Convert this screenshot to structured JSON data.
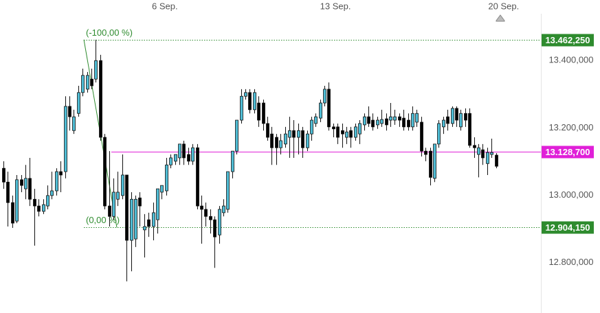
{
  "chart_data": {
    "type": "candlestick",
    "xlim": [
      -0.78,
      121.9
    ],
    "xticks": [
      {
        "value": 36.7,
        "label": "6 Sep."
      },
      {
        "value": 75.5,
        "label": "13 Sep."
      },
      {
        "value": 113.75,
        "label": "20 Sep."
      }
    ],
    "ylim": [
      12650,
      13580
    ],
    "yticks": [
      {
        "value": 12800,
        "label": "12.800,000"
      },
      {
        "value": 13000,
        "label": "13.000,000"
      },
      {
        "value": 13200,
        "label": "13.200,000"
      },
      {
        "value": 13400,
        "label": "13.400,000"
      }
    ],
    "grid": false,
    "up_color": "#4fbcd4",
    "down_color": "#000000",
    "open": [
      13080,
      13039,
      12978,
      12923,
      13046,
      13019,
      13050,
      12988,
      12968,
      12952,
      12968,
      12999,
      13013,
      13070,
      13070,
      13264,
      13192,
      13243,
      13305,
      13315,
      13345,
      13345,
      13400,
      13172,
      12968,
      12937,
      12988,
      12999,
      13060,
      12866,
      12870,
      12992,
      12897,
      12927,
      12907,
      12927,
      13009,
      13013,
      13090,
      13101,
      13111,
      13152,
      13121,
      13101,
      13141,
      12968,
      12958,
      12937,
      12927,
      12882,
      12948,
      12958,
      13070,
      13131,
      13223,
      13294,
      13305,
      13254,
      13274,
      13274,
      13213,
      13182,
      13172,
      13141,
      13152,
      13172,
      13192,
      13172,
      13192,
      13141,
      13182,
      13213,
      13229,
      13274,
      13315,
      13203,
      13203,
      13192,
      13172,
      13192,
      13172,
      13182,
      13209,
      13233,
      13223,
      13209,
      13213,
      13227,
      13223,
      13223,
      13233,
      13229,
      13223,
      13203,
      13217,
      13217,
      13131,
      13131,
      13050,
      13152,
      13203,
      13233,
      13213,
      13258,
      13203,
      13243,
      13243,
      13148,
      13121,
      13135,
      13094,
      13121,
      13119
    ],
    "high": [
      13101,
      13070,
      12999,
      13060,
      13060,
      13090,
      13111,
      13019,
      12988,
      12988,
      13029,
      13070,
      13080,
      13101,
      13294,
      13294,
      13254,
      13325,
      13376,
      13366,
      13376,
      13462,
      13417,
      13182,
      13131,
      13050,
      13070,
      13121,
      13060,
      13009,
      12999,
      13009,
      12944,
      12948,
      12978,
      13019,
      13029,
      13111,
      13121,
      13121,
      13152,
      13162,
      13141,
      13152,
      13152,
      12999,
      12978,
      12958,
      12937,
      12968,
      12988,
      13070,
      13131,
      13223,
      13315,
      13315,
      13315,
      13315,
      13294,
      13284,
      13233,
      13203,
      13182,
      13182,
      13203,
      13233,
      13223,
      13213,
      13203,
      13192,
      13233,
      13243,
      13284,
      13325,
      13335,
      13213,
      13213,
      13213,
      13203,
      13203,
      13213,
      13223,
      13243,
      13264,
      13243,
      13233,
      13254,
      13243,
      13274,
      13254,
      13243,
      13254,
      13243,
      13264,
      13254,
      13233,
      13141,
      13141,
      13152,
      13223,
      13233,
      13254,
      13264,
      13264,
      13254,
      13258,
      13258,
      13172,
      13152,
      13152,
      13141,
      13168,
      13125
    ],
    "low": [
      13019,
      12907,
      12903,
      12917,
      13009,
      12988,
      12968,
      12850,
      12937,
      12944,
      12958,
      12988,
      12999,
      13009,
      13050,
      13192,
      13182,
      13233,
      13294,
      13305,
      13315,
      13335,
      13162,
      12958,
      12907,
      12927,
      12968,
      12988,
      12744,
      12774,
      12846,
      12907,
      12815,
      12876,
      12866,
      12886,
      12988,
      12999,
      13080,
      13090,
      13090,
      13090,
      13090,
      13090,
      12958,
      12856,
      12907,
      12886,
      12784,
      12856,
      12937,
      12948,
      13050,
      13121,
      13213,
      13284,
      13243,
      13243,
      13203,
      13192,
      13162,
      13090,
      13090,
      13121,
      13141,
      13111,
      13111,
      13121,
      13111,
      13131,
      13162,
      13203,
      13217,
      13264,
      13192,
      13172,
      13152,
      13141,
      13152,
      13141,
      13162,
      13152,
      13192,
      13203,
      13192,
      13197,
      13203,
      13192,
      13203,
      13209,
      13203,
      13192,
      13192,
      13192,
      13203,
      13115,
      13101,
      13029,
      13039,
      13141,
      13182,
      13192,
      13203,
      13203,
      13192,
      13203,
      13141,
      13111,
      13053,
      13090,
      13060,
      13111,
      13080
    ],
    "close": [
      13039,
      12978,
      12917,
      13046,
      13029,
      13050,
      12988,
      12968,
      12952,
      12972,
      12999,
      13013,
      13070,
      13060,
      13264,
      13233,
      13233,
      13305,
      13356,
      13356,
      13325,
      13400,
      13172,
      12968,
      12937,
      13009,
      13009,
      13060,
      12866,
      12988,
      12988,
      12968,
      12907,
      12907,
      12948,
      13019,
      13029,
      13090,
      13111,
      13121,
      13152,
      13111,
      13101,
      13141,
      12968,
      12958,
      12937,
      12927,
      12876,
      12958,
      12968,
      13070,
      13131,
      13223,
      13294,
      13305,
      13254,
      13305,
      13223,
      13213,
      13172,
      13141,
      13141,
      13162,
      13182,
      13192,
      13172,
      13192,
      13141,
      13182,
      13223,
      13233,
      13274,
      13315,
      13203,
      13197,
      13172,
      13182,
      13188,
      13172,
      13203,
      13213,
      13233,
      13213,
      13203,
      13223,
      13225,
      13209,
      13233,
      13233,
      13223,
      13203,
      13203,
      13243,
      13243,
      13131,
      13121,
      13053,
      13152,
      13213,
      13223,
      13213,
      13258,
      13223,
      13243,
      13223,
      13148,
      13141,
      13141,
      13111,
      13127,
      13127,
      13086
    ],
    "levels": [
      {
        "value": 13462.25,
        "label": "13.462,250",
        "color": "#2e8b2e",
        "style": "dotted",
        "note": "(-100,00 %)"
      },
      {
        "value": 13128.7,
        "label": "13.128,700",
        "color": "#e020d8",
        "style": "solid"
      },
      {
        "value": 12904.15,
        "label": "12.904,150",
        "color": "#2e8b2e",
        "style": "dotted",
        "note": "(0,00 %)"
      }
    ]
  }
}
